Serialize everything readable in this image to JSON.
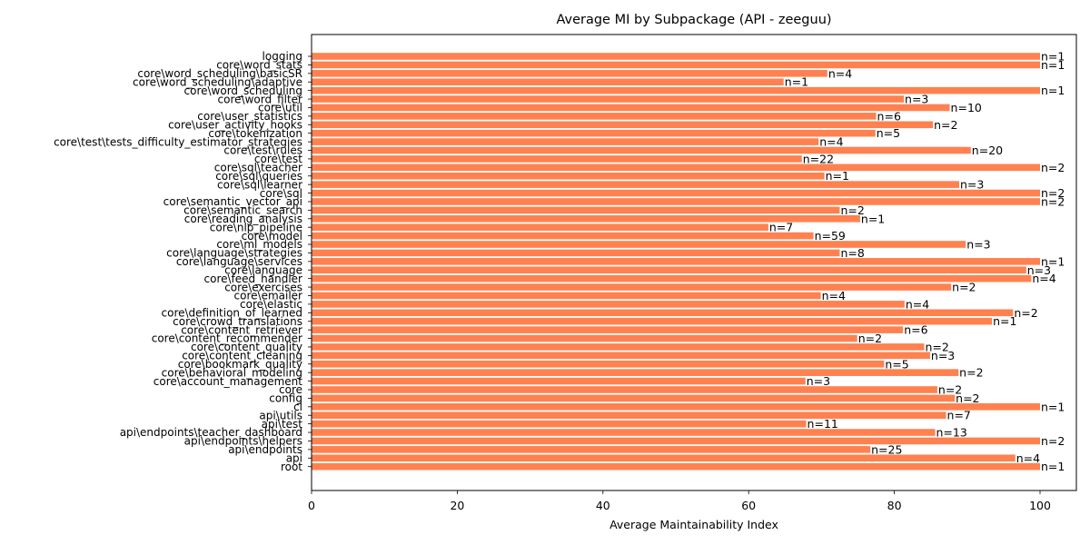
{
  "chart_data": {
    "type": "bar",
    "orientation": "horizontal",
    "title": "Average MI by Subpackage (API - zeeguu)",
    "xlabel": "Average Maintainability Index",
    "ylabel": "",
    "xlim": [
      0,
      105
    ],
    "xticks": [
      "0",
      "20",
      "40",
      "60",
      "80",
      "100"
    ],
    "grid": false,
    "bar_color": "#ff8150",
    "categories": [
      "logging",
      "core\\word_stats",
      "core\\word_scheduling\\basicSR",
      "core\\word_scheduling\\adaptive",
      "core\\word_scheduling",
      "core\\word_filter",
      "core\\util",
      "core\\user_statistics",
      "core\\user_activity_hooks",
      "core\\tokenization",
      "core\\test\\tests_difficulty_estimator_strategies",
      "core\\test\\rules",
      "core\\test",
      "core\\sql\\teacher",
      "core\\sql\\queries",
      "core\\sql\\learner",
      "core\\sql",
      "core\\semantic_vector_api",
      "core\\semantic_search",
      "core\\reading_analysis",
      "core\\nlp_pipeline",
      "core\\model",
      "core\\ml_models",
      "core\\language\\strategies",
      "core\\language\\services",
      "core\\language",
      "core\\feed_handler",
      "core\\exercises",
      "core\\emailer",
      "core\\elastic",
      "core\\definition_of_learned",
      "core\\crowd_translations",
      "core\\content_retriever",
      "core\\content_recommender",
      "core\\content_quality",
      "core\\content_cleaning",
      "core\\bookmark_quality",
      "core\\behavioral_modeling",
      "core\\account_management",
      "core",
      "config",
      "cl",
      "api\\utils",
      "api\\test",
      "api\\endpoints\\teacher_dashboard",
      "api\\endpoints\\helpers",
      "api\\endpoints",
      "api",
      "root"
    ],
    "values": [
      100,
      100,
      70.8,
      64.8,
      100,
      81.3,
      87.6,
      77.5,
      85.3,
      77.4,
      69.6,
      90.5,
      67.3,
      100,
      70.4,
      88.9,
      100,
      100,
      72.5,
      75.3,
      62.7,
      68.9,
      89.8,
      72.5,
      100,
      98.1,
      98.8,
      87.8,
      69.9,
      81.4,
      96.3,
      93.4,
      81.2,
      74.9,
      84.1,
      84.9,
      78.6,
      88.8,
      67.8,
      85.9,
      88.3,
      100,
      87.1,
      67.9,
      85.6,
      100,
      76.7,
      96.6,
      100
    ],
    "annotations": [
      "n=1",
      "n=1",
      "n=4",
      "n=1",
      "n=1",
      "n=3",
      "n=10",
      "n=6",
      "n=2",
      "n=5",
      "n=4",
      "n=20",
      "n=22",
      "n=2",
      "n=1",
      "n=3",
      "n=2",
      "n=2",
      "n=2",
      "n=1",
      "n=7",
      "n=59",
      "n=3",
      "n=8",
      "n=1",
      "n=3",
      "n=4",
      "n=2",
      "n=4",
      "n=4",
      "n=2",
      "n=1",
      "n=6",
      "n=2",
      "n=2",
      "n=3",
      "n=5",
      "n=2",
      "n=3",
      "n=2",
      "n=2",
      "n=1",
      "n=7",
      "n=11",
      "n=13",
      "n=2",
      "n=25",
      "n=4",
      "n=1"
    ]
  }
}
